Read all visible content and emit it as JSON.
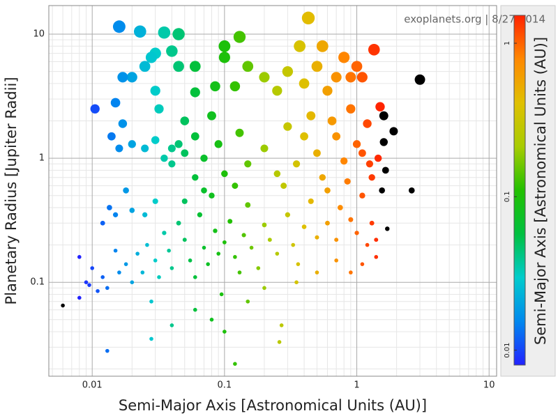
{
  "chart_data": {
    "type": "scatter",
    "annotation": "exoplanets.org | 8/27/2014",
    "xlabel": "Semi-Major Axis [Astronomical Units (AU)]",
    "ylabel": "Planetary Radius [Jupiter Radii]",
    "xscale": "log",
    "yscale": "log",
    "grid": true,
    "xlim": [
      0.0047,
      11.4
    ],
    "ylim": [
      0.0175,
      17
    ],
    "xticks": [
      0.01,
      0.1,
      1,
      10
    ],
    "yticks": [
      0.1,
      1,
      10
    ],
    "xminor": [
      0.005,
      0.006,
      0.007,
      0.008,
      0.009,
      0.02,
      0.03,
      0.04,
      0.05,
      0.06,
      0.07,
      0.08,
      0.09,
      0.2,
      0.3,
      0.4,
      0.5,
      0.6,
      0.7,
      0.8,
      0.9,
      2,
      3,
      4,
      5,
      6,
      7,
      8,
      9
    ],
    "yminor": [
      0.02,
      0.03,
      0.04,
      0.05,
      0.06,
      0.07,
      0.08,
      0.09,
      0.2,
      0.3,
      0.4,
      0.5,
      0.6,
      0.7,
      0.8,
      0.9,
      2,
      3,
      4,
      5,
      6,
      7,
      8,
      9
    ],
    "colorbar": {
      "label": "Semi-Major Axis [Astronomical Units (AU)]",
      "lim": [
        0.008,
        1.52
      ],
      "ticks": [
        0.01,
        0.1,
        1
      ],
      "colors": [
        "#2222ff",
        "#0088ee",
        "#00cccc",
        "#00c040",
        "#22c000",
        "#a8cc00",
        "#e0c000",
        "#ff8800",
        "#ff2200"
      ],
      "over_color": "#000000"
    },
    "x": [
      0.016,
      0.023,
      0.035,
      0.045,
      0.43,
      0.55,
      1.35,
      3.0,
      0.13,
      0.1,
      0.37,
      0.03,
      0.028,
      0.04,
      0.025,
      0.02,
      0.017,
      0.03,
      0.045,
      0.06,
      0.1,
      0.15,
      0.2,
      0.3,
      0.5,
      0.8,
      1.0,
      0.7,
      0.25,
      0.12,
      0.085,
      0.06,
      0.4,
      0.6,
      0.9,
      1.1,
      0.0105,
      0.015,
      0.017,
      0.014,
      0.016,
      0.02,
      0.025,
      0.03,
      0.04,
      0.05,
      0.045,
      0.035,
      0.06,
      0.05,
      0.08,
      0.07,
      0.04,
      0.032,
      1.6,
      1.9,
      1.6,
      1.45,
      1.65,
      1.55,
      1.7,
      2.6,
      1.5,
      0.006,
      0.008,
      0.008,
      0.009,
      0.0095,
      0.01,
      0.011,
      0.012,
      0.013,
      0.013,
      0.012,
      0.0135,
      0.015,
      0.016,
      0.018,
      0.02,
      0.022,
      0.024,
      0.026,
      0.028,
      0.03,
      0.032,
      0.035,
      0.038,
      0.04,
      0.045,
      0.05,
      0.055,
      0.06,
      0.065,
      0.07,
      0.075,
      0.08,
      0.085,
      0.09,
      0.095,
      0.1,
      0.11,
      0.12,
      0.13,
      0.14,
      0.15,
      0.16,
      0.18,
      0.2,
      0.22,
      0.25,
      0.28,
      0.3,
      0.33,
      0.36,
      0.4,
      0.45,
      0.5,
      0.55,
      0.6,
      0.7,
      0.75,
      0.8,
      0.9,
      1.0,
      1.1,
      1.2,
      1.3,
      1.4,
      1.0,
      0.7,
      0.5,
      0.35,
      0.25,
      0.2,
      0.15,
      0.12,
      0.1,
      0.07,
      0.06,
      0.05,
      0.03,
      0.025,
      0.02,
      0.018,
      0.015,
      0.028,
      0.04,
      0.06,
      0.08,
      0.12,
      0.1,
      0.15,
      0.2,
      0.26,
      0.27,
      0.35,
      0.5,
      0.7,
      0.9,
      1.1,
      1.3,
      1.4,
      0.65,
      0.9,
      1.2,
      0.45,
      0.3,
      0.13,
      0.09,
      0.4,
      1.25,
      1.1,
      0.85,
      0.6
    ],
    "y": [
      11.5,
      10.5,
      10.3,
      10,
      13.5,
      8,
      7.5,
      4.3,
      9.5,
      8,
      8,
      7,
      6.5,
      7.3,
      5.5,
      4.5,
      4.5,
      3.5,
      5.5,
      5.5,
      6.5,
      5.5,
      4.5,
      5,
      5.5,
      6.5,
      5.5,
      4.5,
      3.5,
      3.8,
      3.8,
      3.4,
      4,
      3.5,
      4.5,
      4.5,
      2.5,
      2.8,
      1.9,
      1.5,
      1.2,
      1.3,
      1.2,
      1.4,
      1.2,
      1.1,
      1.3,
      1.0,
      1.5,
      2.0,
      2.2,
      1.0,
      0.9,
      2.5,
      2.2,
      1.65,
      1.35,
      1.0,
      0.8,
      0.55,
      0.27,
      0.55,
      2.6,
      0.065,
      0.075,
      0.16,
      0.1,
      0.095,
      0.13,
      0.085,
      0.11,
      0.09,
      0.028,
      0.3,
      0.4,
      0.18,
      0.12,
      0.14,
      0.1,
      0.17,
      0.12,
      0.2,
      0.07,
      0.15,
      0.11,
      0.25,
      0.18,
      0.13,
      0.3,
      0.22,
      0.15,
      0.11,
      0.35,
      0.19,
      0.14,
      0.5,
      0.26,
      0.17,
      0.08,
      0.21,
      0.31,
      0.16,
      0.12,
      0.24,
      0.42,
      0.19,
      0.13,
      0.29,
      0.22,
      0.17,
      0.6,
      0.35,
      0.2,
      0.14,
      0.28,
      0.45,
      0.23,
      0.7,
      0.3,
      0.22,
      0.4,
      0.95,
      0.32,
      0.25,
      0.5,
      0.2,
      0.7,
      0.16,
      1.3,
      1.5,
      1.1,
      0.9,
      0.75,
      1.2,
      0.9,
      0.6,
      0.75,
      0.55,
      0.7,
      0.45,
      0.45,
      0.35,
      0.38,
      0.55,
      0.35,
      0.035,
      0.045,
      0.06,
      0.05,
      0.022,
      0.04,
      0.07,
      0.09,
      0.033,
      0.045,
      0.1,
      0.12,
      0.15,
      0.12,
      0.14,
      0.3,
      0.22,
      2.0,
      2.5,
      1.9,
      2.2,
      1.8,
      1.6,
      1.3,
      1.5,
      0.9,
      1.1,
      0.65,
      0.55
    ]
  }
}
